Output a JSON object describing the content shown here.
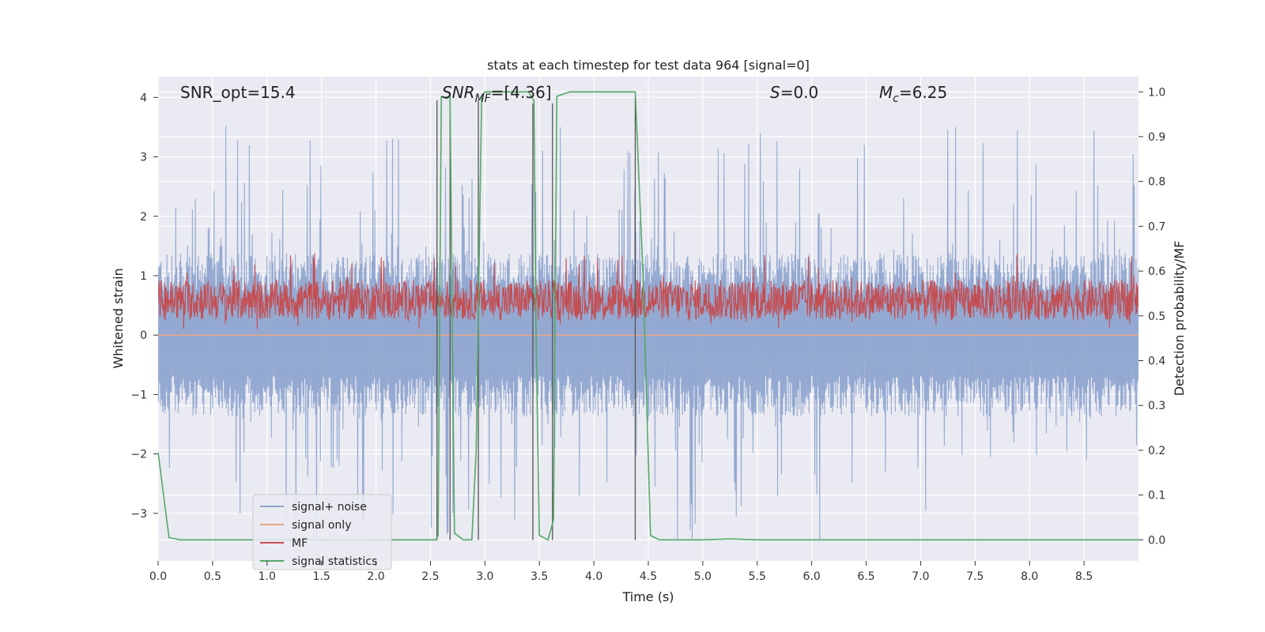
{
  "chart_data": {
    "type": "line",
    "title": "stats at each timestep for test data 964 [signal=0]",
    "xlabel": "Time (s)",
    "ylabel": "Whitened strain",
    "ylabel_right": "Detection probability/MF",
    "xlim": [
      0.0,
      9.0
    ],
    "ylim": [
      -3.8,
      4.35
    ],
    "ylim_right": [
      -0.047,
      1.034
    ],
    "xticks": [
      "0.0",
      "0.5",
      "1.0",
      "1.5",
      "2.0",
      "2.5",
      "3.0",
      "3.5",
      "4.0",
      "4.5",
      "5.0",
      "5.5",
      "6.0",
      "6.5",
      "7.0",
      "7.5",
      "8.0",
      "8.5"
    ],
    "yticks": [
      "4",
      "3",
      "2",
      "1",
      "0",
      "−1",
      "−2",
      "−3"
    ],
    "yticks_right": [
      "1.0",
      "0.9",
      "0.8",
      "0.7",
      "0.6",
      "0.5",
      "0.4",
      "0.3",
      "0.2",
      "0.1",
      "0.0"
    ],
    "grid": true,
    "annotations": {
      "snr_opt": "SNR_opt=15.4",
      "snr_mf_main": "SNR",
      "snr_mf_sub": "MF",
      "snr_mf_rest": "=[4.36]",
      "s_main": "S",
      "s_rest": "=0.0",
      "mc_main": "M",
      "mc_sub": "c",
      "mc_rest": "=6.25"
    },
    "legend": {
      "position": "lower-left",
      "entries": [
        {
          "label": "signal+ noise",
          "color": "#8fa5cf"
        },
        {
          "label": "signal only",
          "color": "#e9a58a"
        },
        {
          "label": "MF",
          "color": "#c44e52"
        },
        {
          "label": "signal statistics",
          "color": "#55a868"
        }
      ]
    },
    "noise_envelope": {
      "name": "signal+ noise",
      "axis": "left",
      "color": "#8fa5cf",
      "band": [
        -1.25,
        1.25
      ],
      "spike_range": [
        -3.45,
        3.55
      ],
      "samples": 2000
    },
    "signal_only": {
      "name": "signal only",
      "axis": "left",
      "color": "#e9a58a",
      "value": 0.0
    },
    "mf_band": {
      "name": "MF",
      "axis": "right",
      "color": "#c44e52",
      "band": [
        0.49,
        0.58
      ],
      "extremes": [
        0.47,
        0.64
      ],
      "samples": 2000
    },
    "signal_statistics": {
      "name": "signal statistics",
      "axis": "right",
      "color": "#55a868",
      "x": [
        0.0,
        0.1,
        0.2,
        2.5,
        2.55,
        2.57,
        2.6,
        2.65,
        2.68,
        2.72,
        2.8,
        2.88,
        2.92,
        2.97,
        3.0,
        3.4,
        3.45,
        3.47,
        3.5,
        3.58,
        3.63,
        3.66,
        3.72,
        3.78,
        4.38,
        4.45,
        4.52,
        4.6,
        5.0,
        5.25,
        5.5,
        9.0
      ],
      "y": [
        0.195,
        0.005,
        0.0,
        0.0,
        0.0,
        0.01,
        0.99,
        0.985,
        0.99,
        0.015,
        0.0,
        0.0,
        0.2,
        0.99,
        1.0,
        1.0,
        0.98,
        0.45,
        0.01,
        0.0,
        0.045,
        0.99,
        0.995,
        1.0,
        1.0,
        0.6,
        0.01,
        0.0,
        0.0,
        0.002,
        0.0,
        0.0
      ]
    },
    "markers": {
      "axis": "left",
      "color": "#555555",
      "x": [
        2.56,
        2.68,
        2.94,
        3.44,
        3.62,
        4.38
      ],
      "y_top": [
        3.95,
        3.9,
        3.95,
        3.9,
        3.9,
        4.0
      ],
      "y_bottom": [
        -3.45,
        -3.45,
        -3.45,
        -3.45,
        -3.45,
        -3.45
      ]
    }
  }
}
